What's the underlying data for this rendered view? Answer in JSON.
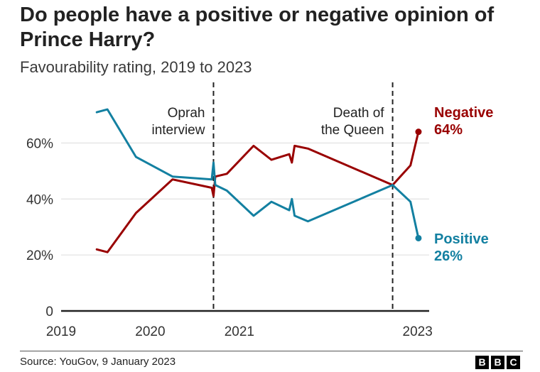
{
  "chart_data": {
    "type": "line",
    "title": "Do people have a positive or negative opinion of Prince Harry?",
    "subtitle": "Favourability rating, 2019 to 2023",
    "xlabel": "",
    "ylabel": "",
    "xlim": [
      2019.0,
      2023.13
    ],
    "ylim": [
      0,
      70
    ],
    "y_ticks": [
      {
        "value": 0,
        "label": "0"
      },
      {
        "value": 20,
        "label": "20%"
      },
      {
        "value": 40,
        "label": "40%"
      },
      {
        "value": 60,
        "label": "60%"
      }
    ],
    "x_ticks": [
      {
        "value": 2019.0,
        "label": "2019"
      },
      {
        "value": 2020.0,
        "label": "2020"
      },
      {
        "value": 2021.0,
        "label": "2021"
      },
      {
        "value": 2023.0,
        "label": "2023"
      }
    ],
    "series": [
      {
        "name": "Negative",
        "color": "#990000",
        "end_label": "Negative",
        "end_value": "64%",
        "x": [
          2019.4,
          2019.52,
          2019.84,
          2020.25,
          2020.69,
          2020.71,
          2020.73,
          2020.86,
          2021.16,
          2021.36,
          2021.56,
          2021.59,
          2021.62,
          2021.77,
          2022.72,
          2022.92,
          2023.01
        ],
        "y": [
          22,
          21,
          35,
          47,
          44,
          41,
          48,
          49,
          59,
          54,
          56,
          53,
          59,
          58,
          45,
          52,
          64
        ]
      },
      {
        "name": "Positive",
        "color": "#1380A1",
        "end_label": "Positive",
        "end_value": "26%",
        "x": [
          2019.4,
          2019.52,
          2019.84,
          2020.25,
          2020.69,
          2020.71,
          2020.73,
          2020.86,
          2021.16,
          2021.36,
          2021.56,
          2021.59,
          2021.62,
          2021.77,
          2022.72,
          2022.92,
          2023.01
        ],
        "y": [
          71,
          72,
          55,
          48,
          47,
          53,
          45,
          43,
          34,
          39,
          36,
          40,
          34,
          32,
          45,
          39,
          26
        ]
      }
    ],
    "annotations": [
      {
        "x": 2020.71,
        "lines": [
          "Oprah",
          "interview"
        ]
      },
      {
        "x": 2022.72,
        "lines": [
          "Death of",
          "the Queen"
        ]
      }
    ],
    "grid": true
  },
  "footer": {
    "source": "Source: YouGov, 9 January 2023",
    "logo_letters": [
      "B",
      "B",
      "C"
    ]
  }
}
